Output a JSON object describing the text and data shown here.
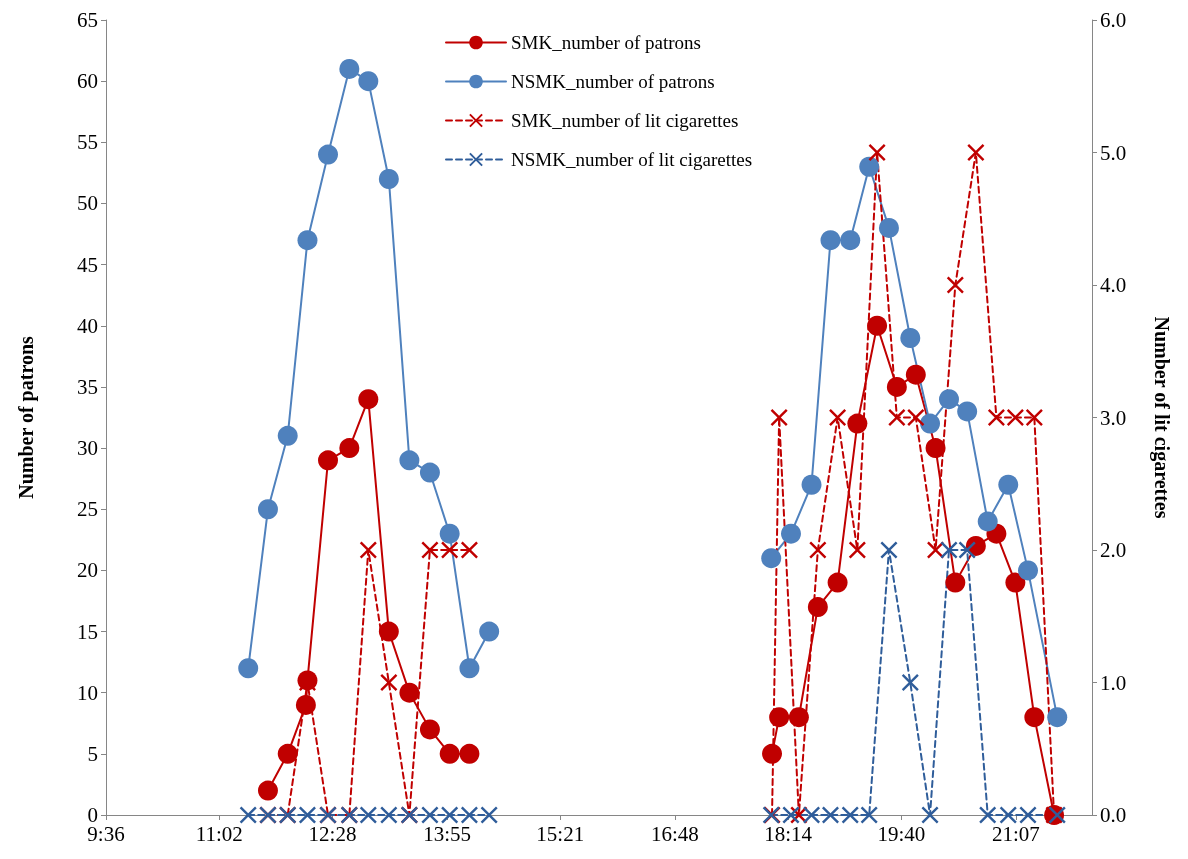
{
  "chart_data": {
    "type": "line",
    "ylabel": "Number of patrons",
    "y2label": "Number of lit cigarettes",
    "xlim": [
      9.6,
      22.08
    ],
    "xticks": [
      {
        "value": 9.6,
        "label": "9:36"
      },
      {
        "value": 11.0333,
        "label": "11:02"
      },
      {
        "value": 12.4667,
        "label": "12:28"
      },
      {
        "value": 13.9167,
        "label": "13:55"
      },
      {
        "value": 15.35,
        "label": "15:21"
      },
      {
        "value": 16.8,
        "label": "16:48"
      },
      {
        "value": 18.2333,
        "label": "18:14"
      },
      {
        "value": 19.6667,
        "label": "19:40"
      },
      {
        "value": 21.1167,
        "label": "21:07"
      }
    ],
    "ylim": [
      0,
      65
    ],
    "yticks": [
      0,
      5,
      10,
      15,
      20,
      25,
      30,
      35,
      40,
      45,
      50,
      55,
      60,
      65
    ],
    "y2lim": [
      0,
      6
    ],
    "y2ticks": [
      {
        "value": 0,
        "label": "0.0"
      },
      {
        "value": 1,
        "label": "1.0"
      },
      {
        "value": 2,
        "label": "2.0"
      },
      {
        "value": 3,
        "label": "3.0"
      },
      {
        "value": 4,
        "label": "4.0"
      },
      {
        "value": 5,
        "label": "5.0"
      },
      {
        "value": 6,
        "label": "6.0"
      }
    ],
    "grid": false,
    "legend": "top",
    "series": [
      {
        "name": "SMK_number of patrons",
        "color": "#c00000",
        "marker": "circle",
        "line_style": "solid",
        "x": [
          11.65,
          11.9,
          12.13,
          12.15,
          12.41,
          12.68,
          12.92,
          13.18,
          13.44,
          13.7,
          13.95,
          14.2,
          16,
          18.03,
          18.12,
          18.37,
          18.61,
          18.86,
          19.11,
          19.36,
          19.61,
          19.85,
          20.1,
          20.35,
          20.61,
          20.87,
          21.11,
          21.35,
          21.6
        ],
        "values": [
          2,
          5,
          9,
          11,
          29,
          30,
          34,
          15,
          10,
          7,
          5,
          5,
          null,
          5,
          8,
          8,
          17,
          19,
          32,
          40,
          35,
          36,
          30,
          19,
          22,
          23,
          19,
          8,
          0
        ]
      },
      {
        "name": "NSMK_number of patrons",
        "color": "#4f81bd",
        "marker": "circle",
        "line_style": "solid",
        "x": [
          11.4,
          11.65,
          11.9,
          12.15,
          12.41,
          12.68,
          12.92,
          13.18,
          13.44,
          13.7,
          13.95,
          14.2,
          14.45,
          16,
          18.02,
          18.27,
          18.53,
          18.77,
          19.02,
          19.26,
          19.51,
          19.78,
          20.03,
          20.27,
          20.5,
          20.76,
          21.02,
          21.27,
          21.64
        ],
        "values": [
          12,
          25,
          31,
          47,
          54,
          61,
          60,
          52,
          29,
          28,
          23,
          12,
          15,
          null,
          21,
          23,
          27,
          47,
          47,
          53,
          48,
          39,
          32,
          34,
          33,
          24,
          27,
          20,
          8
        ]
      },
      {
        "name": "SMK_number of lit cigarettes",
        "color": "#c00000",
        "marker": "cross",
        "line_style": "dashed",
        "axis": "y2",
        "x": [
          11.65,
          11.9,
          12.15,
          12.41,
          12.68,
          12.92,
          13.18,
          13.44,
          13.7,
          13.95,
          14.2,
          16,
          18.03,
          18.12,
          18.37,
          18.61,
          18.86,
          19.11,
          19.36,
          19.61,
          19.85,
          20.1,
          20.35,
          20.61,
          20.87,
          21.11,
          21.35,
          21.6
        ],
        "values": [
          0,
          0,
          1,
          0,
          0,
          2,
          1,
          0,
          2,
          2,
          2,
          null,
          0,
          3,
          0,
          2,
          3,
          2,
          5,
          3,
          3,
          2,
          4,
          5,
          3,
          3,
          3,
          0
        ]
      },
      {
        "name": "NSMK_number of lit cigarettes",
        "color": "#2f5d9a",
        "marker": "cross",
        "line_style": "dashed",
        "axis": "y2",
        "x": [
          11.4,
          11.65,
          11.9,
          12.15,
          12.41,
          12.68,
          12.92,
          13.18,
          13.44,
          13.7,
          13.95,
          14.2,
          14.45,
          16,
          18.02,
          18.27,
          18.53,
          18.77,
          19.02,
          19.26,
          19.51,
          19.78,
          20.03,
          20.27,
          20.5,
          20.76,
          21.02,
          21.27,
          21.64
        ],
        "values": [
          0,
          0,
          0,
          0,
          0,
          0,
          0,
          0,
          0,
          0,
          0,
          0,
          0,
          null,
          0,
          0,
          0,
          0,
          0,
          0,
          2,
          1,
          0,
          2,
          2,
          0,
          0,
          0,
          0
        ]
      }
    ]
  }
}
